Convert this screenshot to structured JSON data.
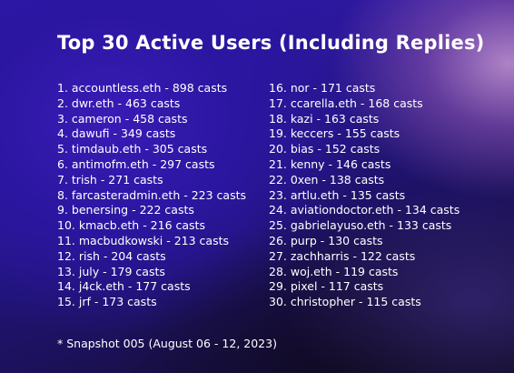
{
  "title": "Top 30 Active Users (Including Replies)",
  "left_column": [
    "1. accountless.eth - 898 casts",
    "2. dwr.eth - 463 casts",
    "3. cameron - 458 casts",
    "4. dawufi - 349 casts",
    "5. timdaub.eth - 305 casts",
    "6. antimofm.eth - 297 casts",
    "7. trish - 271 casts",
    "8. farcasteradmin.eth - 223 casts",
    "9. benersing - 222 casts",
    "10. kmacb.eth - 216 casts",
    "11. macbudkowski - 213 casts",
    "12. rish - 204 casts",
    "13. july - 179 casts",
    "14. j4ck.eth - 177 casts",
    "15. jrf - 173 casts"
  ],
  "right_column": [
    "16. nor - 171 casts",
    "17. ccarella.eth - 168 casts",
    "18. kazi - 163 casts",
    "19. keccers - 155 casts",
    "20. bias - 152 casts",
    "21. kenny - 146 casts",
    "22. 0xen - 138 casts",
    "23. artlu.eth - 135 casts",
    "24. aviationdoctor.eth - 134 casts",
    "25. gabrielayuso.eth - 133 casts",
    "26. purp - 130 casts",
    "27. zachharris - 122 casts",
    "28. woj.eth - 119 casts",
    "29. pixel - 117 casts",
    "30. christopher - 115 casts"
  ],
  "footnote": "* Snapshot 005 (August 06 - 12, 2023)",
  "colors": {
    "text": "#ffffff",
    "background_primary": "#2a1798",
    "background_accent": "#c896d2",
    "background_dark": "#120b26"
  }
}
